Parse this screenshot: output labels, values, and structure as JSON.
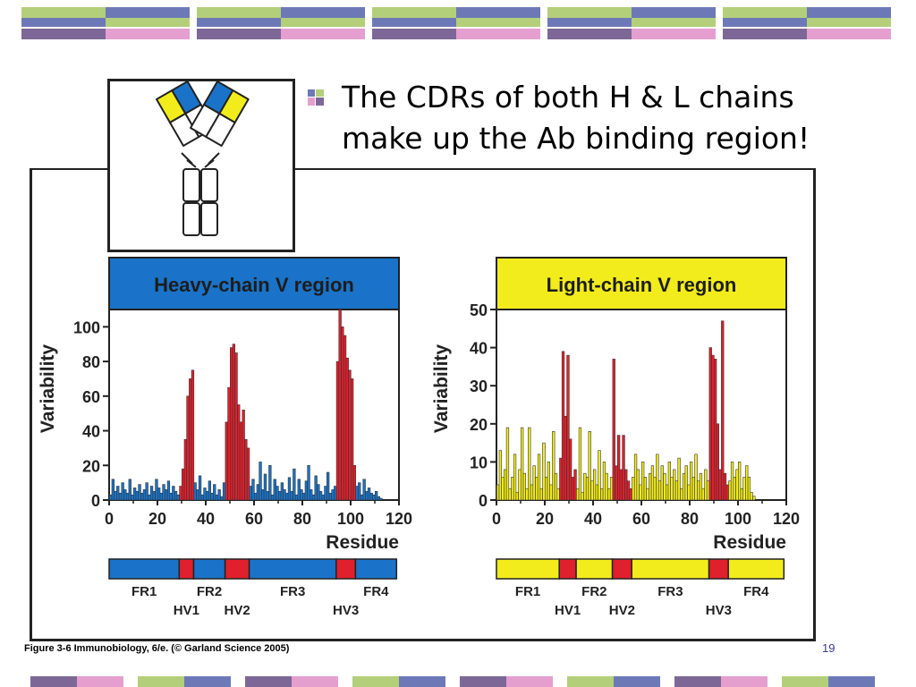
{
  "slide": {
    "bullet_text_line1": "The CDRs of both H & L chains",
    "bullet_text_line2": "make up the Ab binding region!",
    "caption": "Figure 3-6  Immunobiology, 6/e. (© Garland Science 2005)",
    "slide_number": "19"
  },
  "colors": {
    "heavy_accent": "#1a73c8",
    "light_accent": "#f2ec1c",
    "cdr_red": "#e0202c",
    "band_green": "#b3cf7a",
    "band_blue": "#6d79b7",
    "band_purple": "#7d6797",
    "band_pink": "#e49fcf"
  },
  "chart_data": [
    {
      "type": "bar",
      "title": "Heavy-chain V region",
      "xlabel": "Residue",
      "ylabel": "Variability",
      "xlim": [
        0,
        120
      ],
      "ylim": [
        0,
        110
      ],
      "xticks": [
        "0",
        "20",
        "40",
        "60",
        "80",
        "100",
        "120"
      ],
      "yticks": [
        "0",
        "20",
        "40",
        "60",
        "80",
        "100"
      ],
      "regions": [
        {
          "label": "FR1",
          "start": 1,
          "end": 30,
          "type": "FR"
        },
        {
          "label": "HV1",
          "start": 30,
          "end": 36,
          "type": "HV"
        },
        {
          "label": "FR2",
          "start": 36,
          "end": 49,
          "type": "FR"
        },
        {
          "label": "HV2",
          "start": 49,
          "end": 59,
          "type": "HV"
        },
        {
          "label": "FR3",
          "start": 59,
          "end": 95,
          "type": "FR"
        },
        {
          "label": "HV3",
          "start": 95,
          "end": 103,
          "type": "HV"
        },
        {
          "label": "FR4",
          "start": 103,
          "end": 120,
          "type": "FR"
        }
      ],
      "series": [
        {
          "values": [
            3,
            12,
            5,
            8,
            4,
            10,
            6,
            4,
            12,
            3,
            7,
            5,
            9,
            4,
            6,
            10,
            3,
            8,
            5,
            12,
            7,
            4,
            9,
            6,
            11,
            4,
            8,
            5,
            3,
            8,
            18,
            35,
            60,
            70,
            75,
            10,
            6,
            14,
            3,
            7,
            5,
            11,
            4,
            9,
            3,
            6,
            2,
            10,
            45,
            65,
            88,
            90,
            85,
            55,
            45,
            52,
            35,
            30,
            8,
            12,
            4,
            9,
            22,
            6,
            15,
            5,
            20,
            3,
            12,
            8,
            5,
            10,
            6,
            4,
            13,
            5,
            18,
            3,
            12,
            6,
            4,
            11,
            20,
            6,
            3,
            14,
            9,
            5,
            3,
            8,
            16,
            4,
            6,
            8,
            80,
            110,
            100,
            95,
            82,
            75,
            70,
            20,
            8,
            10,
            3,
            12,
            5,
            7,
            4,
            3,
            5,
            2,
            1
          ]
        }
      ]
    },
    {
      "type": "bar",
      "title": "Light-chain V region",
      "xlabel": "Residue",
      "ylabel": "Variability",
      "xlim": [
        0,
        120
      ],
      "ylim": [
        0,
        50
      ],
      "xticks": [
        "0",
        "20",
        "40",
        "60",
        "80",
        "100",
        "120"
      ],
      "yticks": [
        "0",
        "10",
        "20",
        "30",
        "40",
        "50"
      ],
      "regions": [
        {
          "label": "FR1",
          "start": 1,
          "end": 27,
          "type": "FR"
        },
        {
          "label": "HV1",
          "start": 27,
          "end": 34,
          "type": "HV"
        },
        {
          "label": "FR2",
          "start": 34,
          "end": 49,
          "type": "FR"
        },
        {
          "label": "HV2",
          "start": 49,
          "end": 57,
          "type": "HV"
        },
        {
          "label": "FR3",
          "start": 57,
          "end": 89,
          "type": "FR"
        },
        {
          "label": "HV3",
          "start": 89,
          "end": 97,
          "type": "HV"
        },
        {
          "label": "FR4",
          "start": 97,
          "end": 120,
          "type": "FR"
        }
      ],
      "series": [
        {
          "values": [
            4,
            13,
            6,
            8,
            19,
            3,
            6,
            12,
            2,
            8,
            19,
            7,
            3,
            19,
            4,
            9,
            6,
            12,
            3,
            15,
            6,
            10,
            4,
            18,
            7,
            3,
            11,
            39,
            22,
            38,
            16,
            6,
            8,
            3,
            19,
            2,
            7,
            6,
            18,
            5,
            8,
            4,
            13,
            3,
            10,
            7,
            3,
            6,
            37,
            9,
            17,
            8,
            17,
            8,
            5,
            3,
            6,
            12,
            8,
            4,
            10,
            6,
            3,
            7,
            9,
            6,
            12,
            5,
            9,
            7,
            4,
            10,
            6,
            8,
            5,
            11,
            3,
            7,
            9,
            4,
            10,
            6,
            12,
            5,
            7,
            3,
            8,
            5,
            40,
            38,
            37,
            20,
            8,
            47,
            7,
            4,
            5,
            10,
            6,
            8,
            10,
            3,
            6,
            9,
            6,
            2,
            1
          ]
        }
      ]
    }
  ]
}
